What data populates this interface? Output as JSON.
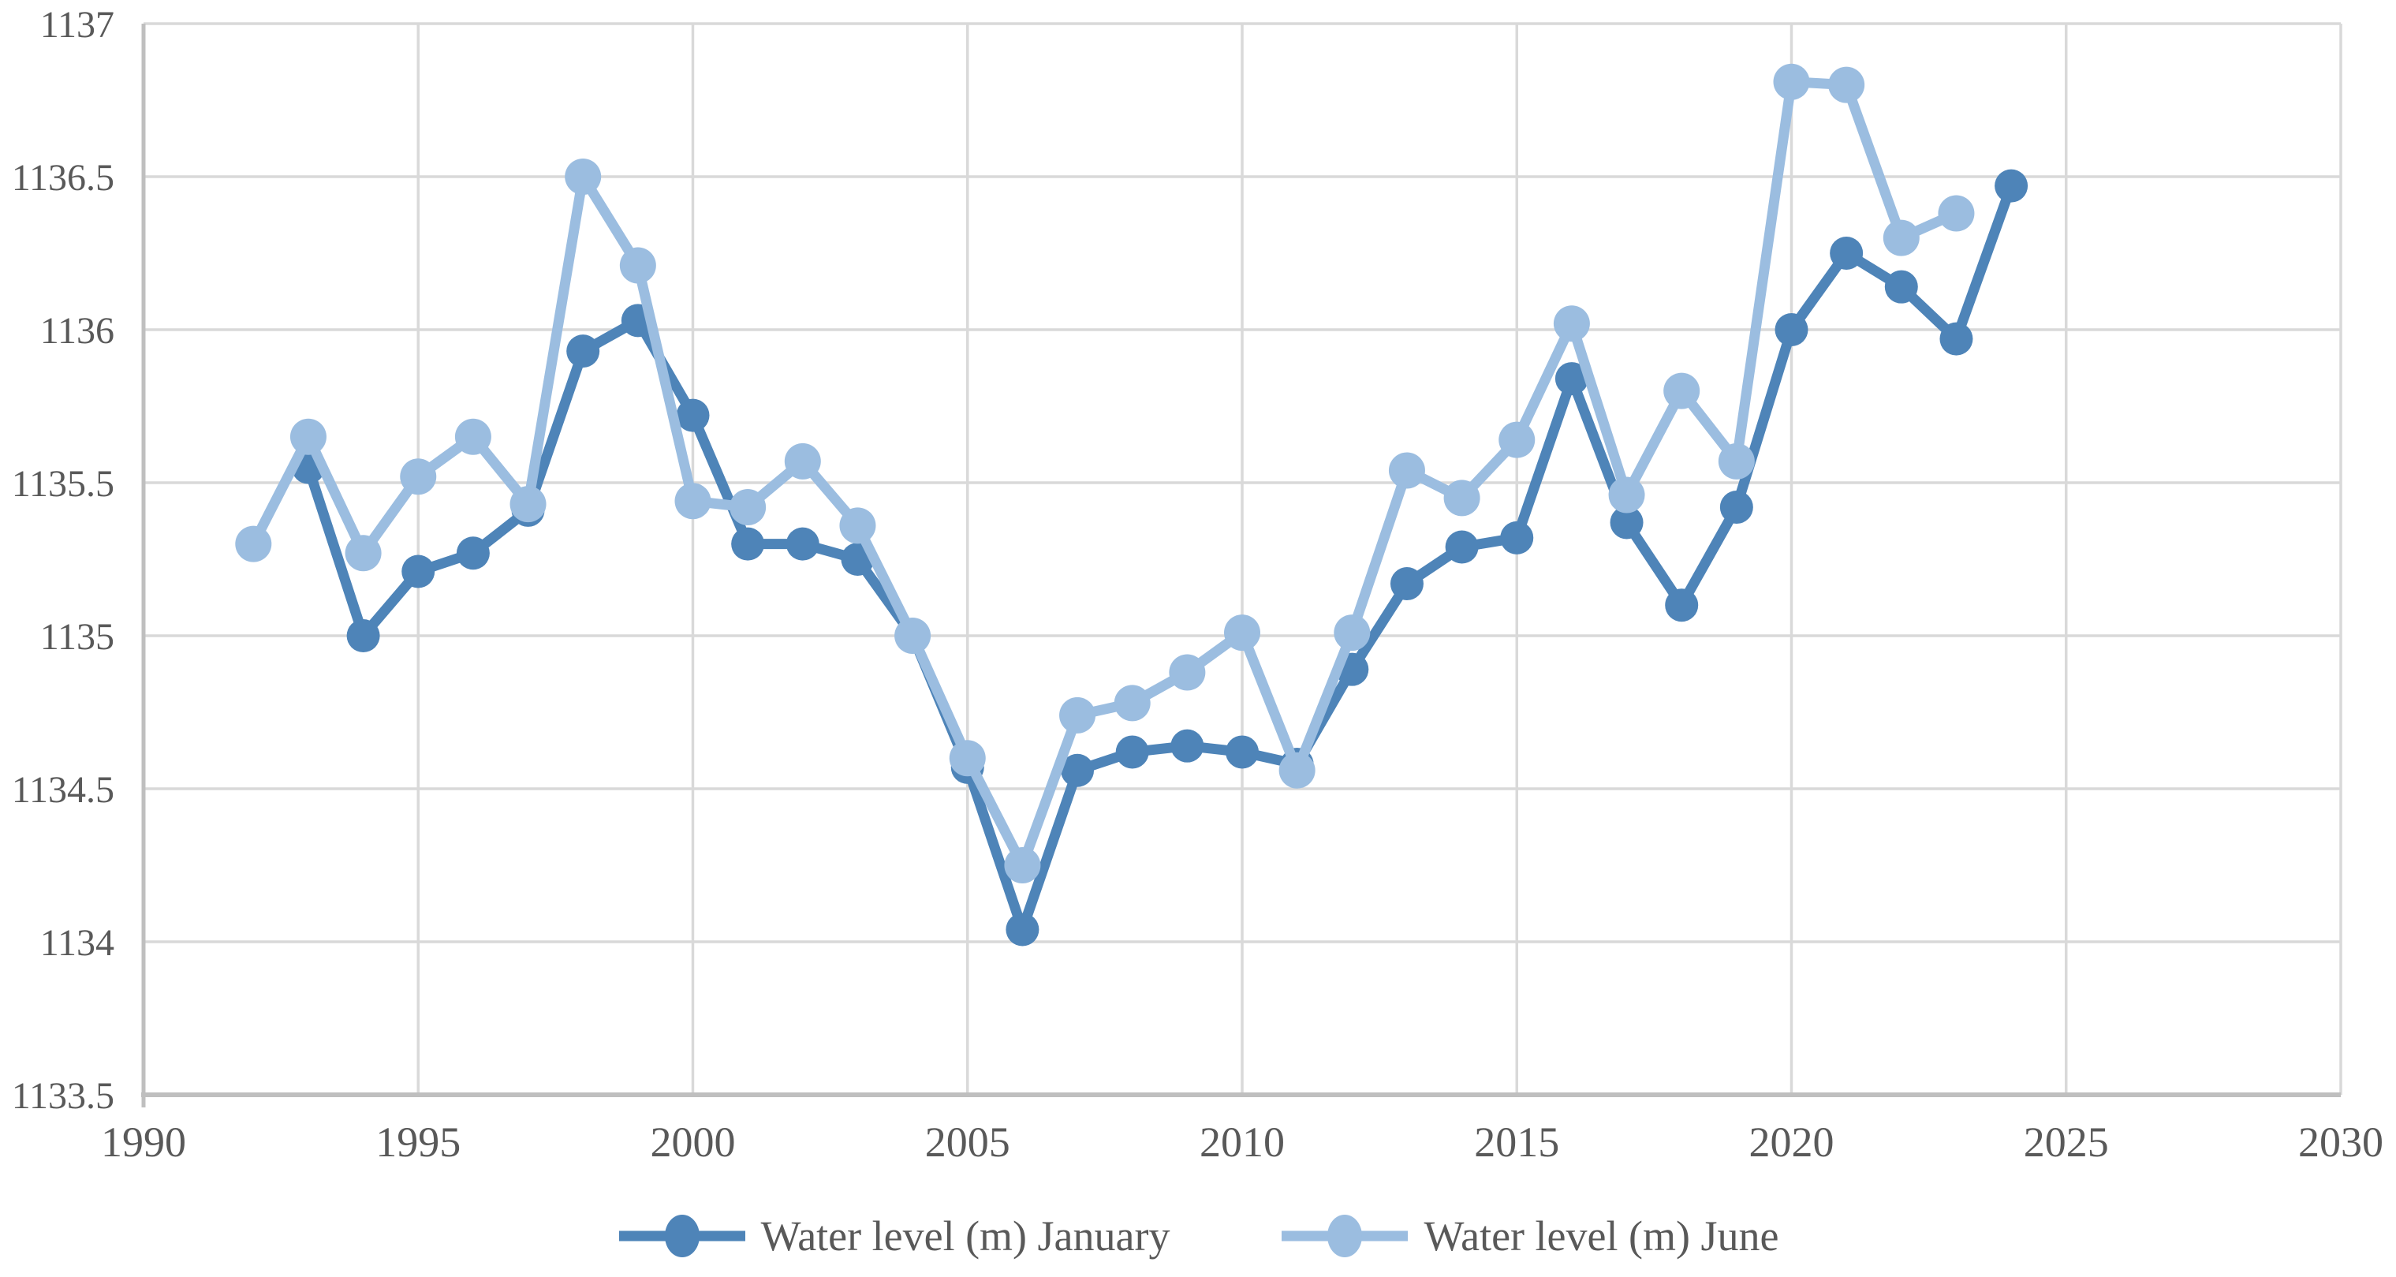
{
  "chart_data": {
    "type": "line",
    "title": "",
    "xlabel": "",
    "ylabel": "",
    "years": [
      1992,
      1993,
      1994,
      1995,
      1996,
      1997,
      1998,
      1999,
      2000,
      2001,
      2002,
      2003,
      2004,
      2005,
      2006,
      2007,
      2008,
      2009,
      2010,
      2011,
      2012,
      2013,
      2014,
      2015,
      2016,
      2017,
      2018,
      2019,
      2020,
      2021,
      2022,
      2023,
      2024
    ],
    "series": [
      {
        "name": "Water level (m) January",
        "color": "#4E84B8",
        "values": [
          null,
          1135.55,
          1135.0,
          1135.21,
          1135.27,
          1135.41,
          1135.93,
          1136.03,
          1135.72,
          1135.3,
          1135.3,
          1135.25,
          1135.0,
          1134.57,
          1134.04,
          1134.56,
          1134.62,
          1134.64,
          1134.62,
          1134.58,
          1134.89,
          1135.17,
          1135.29,
          1135.32,
          1135.84,
          1135.37,
          1135.1,
          1135.42,
          1136.0,
          1136.25,
          1136.14,
          1135.97,
          1136.47
        ]
      },
      {
        "name": "Water level (m) June",
        "color": "#9BBDE0",
        "values": [
          1135.3,
          1135.65,
          1135.27,
          1135.52,
          1135.65,
          1135.43,
          1136.5,
          1136.21,
          1135.44,
          1135.42,
          1135.57,
          1135.36,
          1135.0,
          1134.6,
          1134.25,
          1134.74,
          1134.78,
          1134.88,
          1135.01,
          1134.56,
          1135.01,
          1135.54,
          1135.45,
          1135.64,
          1136.02,
          1135.46,
          1135.8,
          1135.57,
          1136.81,
          1136.8,
          1136.3,
          1136.38,
          null
        ]
      }
    ],
    "xlim": [
      1990,
      2030
    ],
    "ylim": [
      1133.5,
      1137
    ],
    "x_ticks": [
      1990,
      1995,
      2000,
      2005,
      2010,
      2015,
      2020,
      2025,
      2030
    ],
    "x_tick_labels": [
      "1990",
      "1995",
      "2000",
      "2005",
      "2010",
      "2015",
      "2020",
      "2025",
      "2030"
    ],
    "y_ticks": [
      1133.5,
      1134,
      1134.5,
      1135,
      1135.5,
      1136,
      1136.5,
      1137
    ],
    "y_tick_labels": [
      "1133.5",
      "1134",
      "1134.5",
      "1135",
      "1135.5",
      "1136",
      "1136.5",
      "1137"
    ],
    "grid": true,
    "legend_position": "bottom",
    "legend_marker": "line-circle"
  },
  "styles": {
    "grid_color": "#D9D9D9",
    "axis_color": "#BFBFBF",
    "tick_label_color": "#595959",
    "background": "#FFFFFF"
  }
}
